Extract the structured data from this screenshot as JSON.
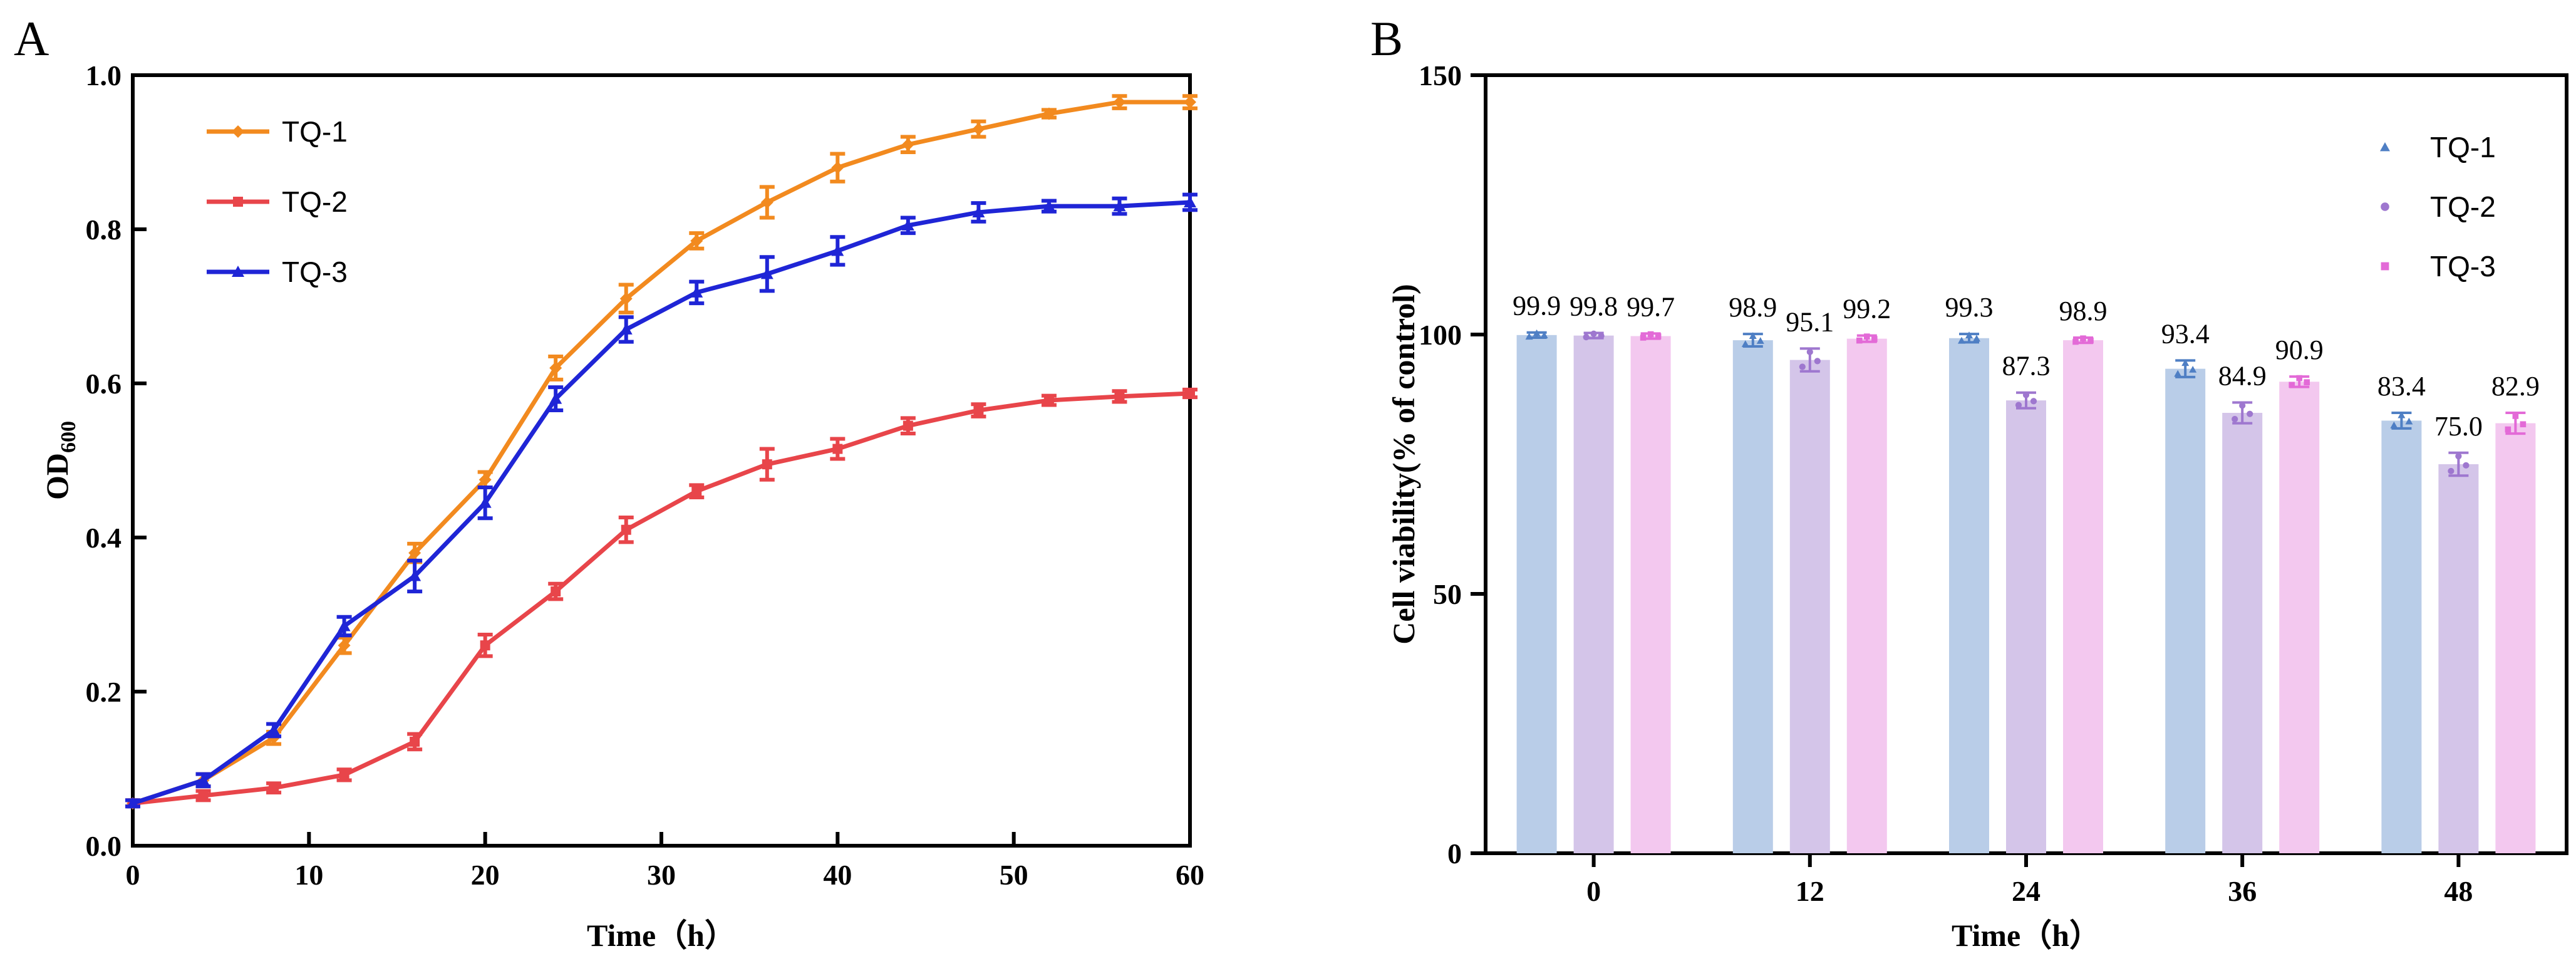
{
  "chart_data": [
    {
      "panel": "A",
      "type": "line",
      "xlabel": "Time（h）",
      "ylabel": "OD600",
      "ylabel_main": "OD",
      "ylabel_sub": "600",
      "xlim": [
        0,
        60
      ],
      "ylim": [
        0,
        1.0
      ],
      "xticks": [
        0,
        10,
        20,
        30,
        40,
        50,
        60
      ],
      "yticks": [
        "0.0",
        "0.2",
        "0.4",
        "0.6",
        "0.8",
        "1.0"
      ],
      "legend_position": "top-left",
      "series": [
        {
          "name": "TQ-1",
          "color": "#F28A1F",
          "marker": "diamond",
          "x": [
            0,
            4,
            8,
            12,
            16,
            20,
            24,
            28,
            32,
            36,
            40,
            44,
            48,
            52,
            56,
            60
          ],
          "y": [
            0.055,
            0.085,
            0.14,
            0.26,
            0.38,
            0.475,
            0.62,
            0.71,
            0.785,
            0.835,
            0.88,
            0.91,
            0.93,
            0.95,
            0.965,
            0.965
          ],
          "err": [
            0.004,
            0.008,
            0.008,
            0.01,
            0.012,
            0.01,
            0.015,
            0.018,
            0.01,
            0.02,
            0.018,
            0.01,
            0.01,
            0.005,
            0.008,
            0.008
          ]
        },
        {
          "name": "TQ-2",
          "color": "#E8454A",
          "marker": "square",
          "x": [
            0,
            4,
            8,
            12,
            16,
            20,
            24,
            28,
            32,
            36,
            40,
            44,
            48,
            52,
            56,
            60
          ],
          "y": [
            0.055,
            0.065,
            0.075,
            0.092,
            0.135,
            0.26,
            0.33,
            0.41,
            0.46,
            0.495,
            0.515,
            0.545,
            0.565,
            0.578,
            0.583,
            0.587
          ],
          "err": [
            0.004,
            0.006,
            0.006,
            0.007,
            0.01,
            0.014,
            0.01,
            0.016,
            0.008,
            0.02,
            0.013,
            0.01,
            0.008,
            0.006,
            0.007,
            0.005
          ]
        },
        {
          "name": "TQ-3",
          "color": "#1F25D6",
          "marker": "triangle",
          "x": [
            0,
            4,
            8,
            12,
            16,
            20,
            24,
            28,
            32,
            36,
            40,
            44,
            48,
            52,
            56,
            60
          ],
          "y": [
            0.055,
            0.085,
            0.15,
            0.285,
            0.35,
            0.445,
            0.58,
            0.67,
            0.718,
            0.742,
            0.772,
            0.805,
            0.822,
            0.83,
            0.83,
            0.835
          ],
          "err": [
            0.004,
            0.008,
            0.008,
            0.012,
            0.02,
            0.02,
            0.015,
            0.016,
            0.014,
            0.022,
            0.018,
            0.01,
            0.012,
            0.007,
            0.01,
            0.01
          ]
        }
      ]
    },
    {
      "panel": "B",
      "type": "bar",
      "xlabel": "Time（h）",
      "ylabel": "Cell viability(% of control)",
      "categories": [
        "0",
        "12",
        "24",
        "36",
        "48"
      ],
      "ylim": [
        0,
        150
      ],
      "yticks": [
        "0",
        "50",
        "100",
        "150"
      ],
      "legend_position": "top-right",
      "series": [
        {
          "name": "TQ-1",
          "color": "#B9CDE8",
          "marker_color": "#4F7FC4",
          "marker": "triangle",
          "values": [
            99.9,
            98.9,
            99.3,
            93.4,
            83.4
          ],
          "labels": [
            "99.9",
            "98.9",
            "99.3",
            "93.4",
            "83.4"
          ],
          "err": [
            0.5,
            1.2,
            0.8,
            1.6,
            1.5
          ]
        },
        {
          "name": "TQ-2",
          "color": "#D4C5E9",
          "marker_color": "#9E77CF",
          "marker": "circle",
          "values": [
            99.8,
            95.1,
            87.3,
            84.9,
            75.0
          ],
          "labels": [
            "99.8",
            "95.1",
            "87.3",
            "84.9",
            "75.0"
          ],
          "err": [
            0.5,
            2.2,
            1.5,
            2.0,
            2.2
          ]
        },
        {
          "name": "TQ-3",
          "color": "#F3C8EF",
          "marker_color": "#E36AD7",
          "marker": "square",
          "values": [
            99.7,
            99.2,
            98.9,
            90.9,
            82.9
          ],
          "labels": [
            "99.7",
            "99.2",
            "98.9",
            "90.9",
            "82.9"
          ],
          "err": [
            0.5,
            0.6,
            0.5,
            1.0,
            2.0
          ]
        }
      ]
    }
  ]
}
